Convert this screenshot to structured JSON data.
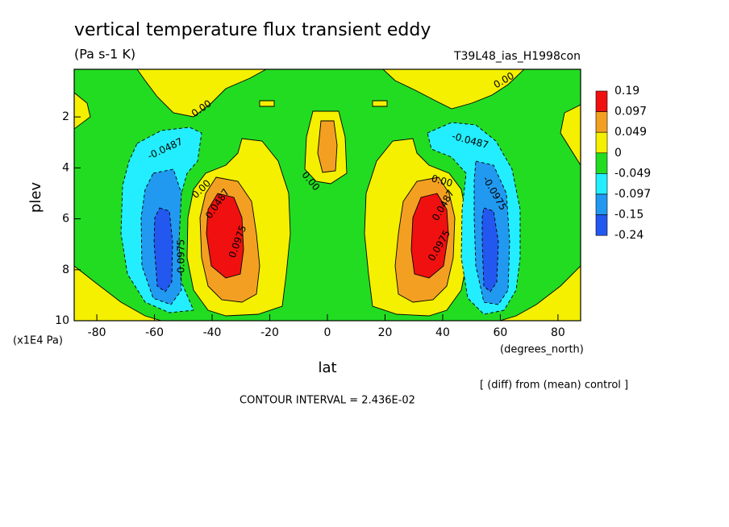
{
  "chart_data": {
    "type": "contour",
    "title": "vertical temperature flux transient eddy",
    "subtitle": "(Pa s-1 K)",
    "run_label": "T39L48_ias_H1998con",
    "x_label": "lat",
    "x_units": "(degrees_north)",
    "y_label": "plev",
    "y_units": "(x1E4 Pa)",
    "diff_note": "[ (diff) from (mean) control ]",
    "contour_interval": "CONTOUR INTERVAL = 2.436E-02",
    "xlim": [
      -87.86,
      87.86
    ],
    "xticks": [
      -80,
      -60,
      -40,
      -20,
      0,
      20,
      40,
      60,
      80
    ],
    "ylim": [
      10,
      0.13
    ],
    "yticks": [
      2,
      4,
      6,
      8,
      10
    ],
    "colorbar": {
      "levels": [
        0.19,
        0.097,
        0.049,
        0,
        -0.049,
        -0.097,
        -0.15,
        -0.24
      ],
      "colors": [
        "#f01010",
        "#f3a022",
        "#f4f000",
        "#22dc22",
        "#22eeff",
        "#2299f0",
        "#2258f0"
      ]
    },
    "contour_labels": [
      "0.00",
      "-0.0487",
      "0.00",
      "0.0487",
      "0.0975",
      "0.00",
      "-0.0975",
      "0.00",
      "-0.0487",
      "0.00",
      "0.0487",
      "0.0975",
      "-0.0975"
    ]
  }
}
